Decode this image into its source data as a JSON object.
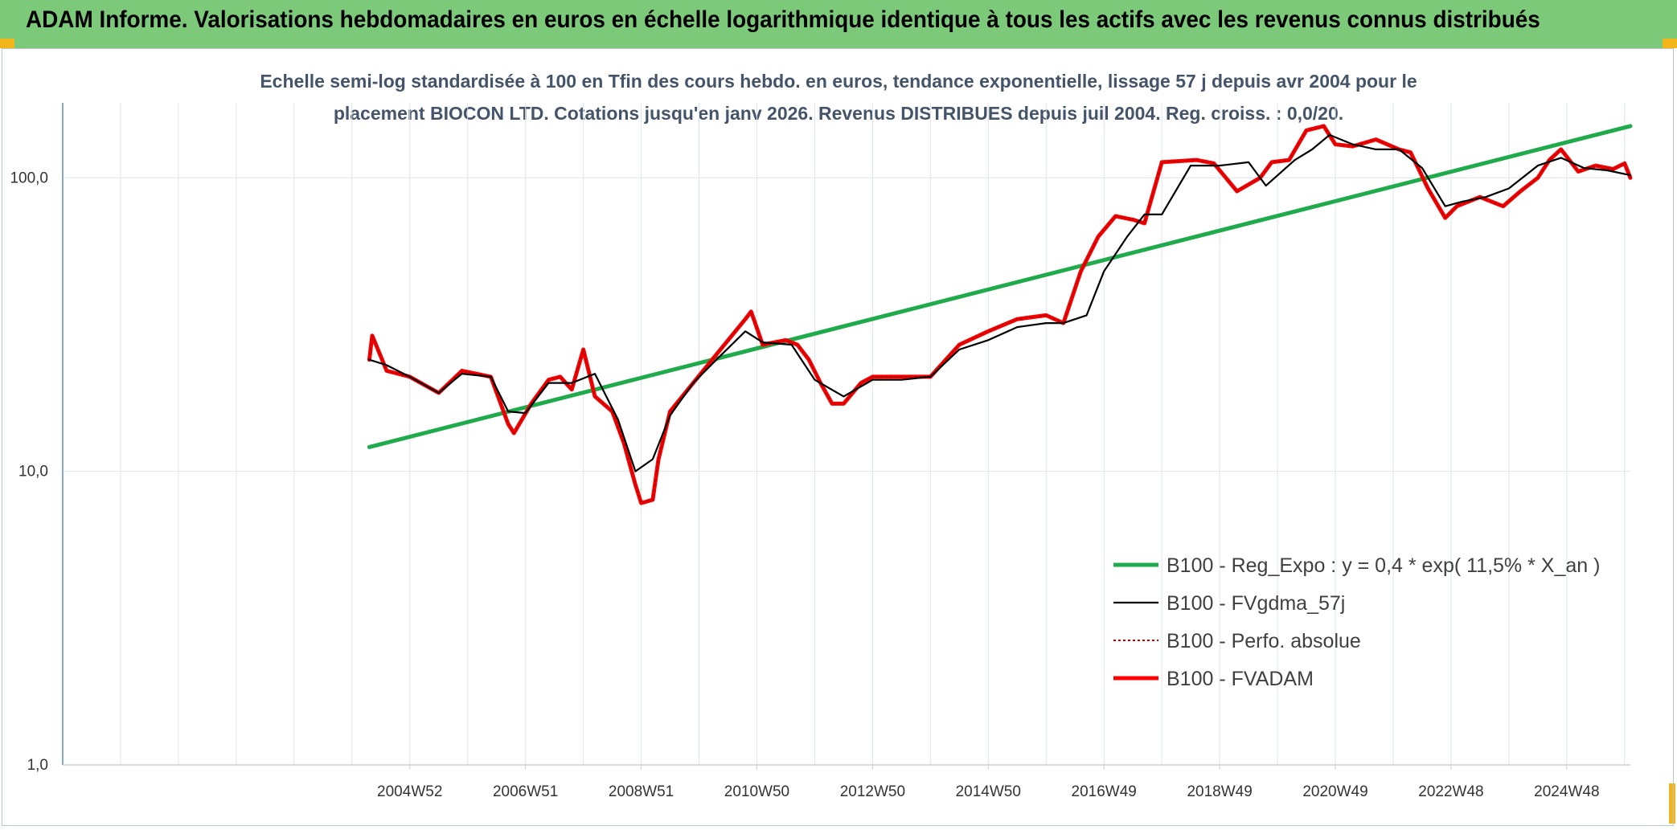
{
  "header": {
    "title": "ADAM Informe. Valorisations hebdomadaires en euros en échelle logarithmique identique à tous les actifs avec les revenus connus distribués"
  },
  "chart_data": {
    "type": "line",
    "scale": "log",
    "grid": true,
    "legend_position": "bottom-right",
    "title_line1": "Echelle semi-log standardisée à 100 en Tfin des cours hebdo. en euros, tendance exponentielle, lissage 57 j depuis avr 2004 pour le",
    "title_line2": "placement BIOCON LTD. Cotations jusqu'en janv 2026. Revenus DISTRIBUES depuis juil 2004. Reg. croiss. : 0,0/20.",
    "ylim": [
      1,
      180
    ],
    "y_ticks": [
      {
        "value": 1,
        "label": "1,0"
      },
      {
        "value": 10,
        "label": "10,0"
      },
      {
        "value": 100,
        "label": "100,0"
      }
    ],
    "xlim": [
      1999.0,
      2026.1
    ],
    "x_ticks": [
      {
        "value": 2005.0,
        "label": "2004W52"
      },
      {
        "value": 2007.0,
        "label": "2006W51"
      },
      {
        "value": 2009.0,
        "label": "2008W51"
      },
      {
        "value": 2011.0,
        "label": "2010W50"
      },
      {
        "value": 2013.0,
        "label": "2012W50"
      },
      {
        "value": 2015.0,
        "label": "2014W50"
      },
      {
        "value": 2017.0,
        "label": "2016W49"
      },
      {
        "value": 2019.0,
        "label": "2018W49"
      },
      {
        "value": 2021.0,
        "label": "2020W49"
      },
      {
        "value": 2023.0,
        "label": "2022W48"
      },
      {
        "value": 2025.0,
        "label": "2024W48"
      }
    ],
    "series": [
      {
        "name": "B100 - Reg_Expo : y = 0,4 * exp( 11,5% *  X_an )",
        "color": "#1faa4b",
        "style": "solid-thick",
        "x": [
          2004.3,
          2026.1
        ],
        "y": [
          12.1,
          150
        ]
      },
      {
        "name": "B100 - FVgdma_57j",
        "color": "#000000",
        "style": "solid-thin",
        "x": [
          2004.3,
          2004.6,
          2005.0,
          2005.5,
          2005.9,
          2006.4,
          2006.7,
          2007.0,
          2007.4,
          2007.8,
          2008.2,
          2008.6,
          2008.9,
          2009.2,
          2009.5,
          2009.9,
          2010.3,
          2010.8,
          2011.1,
          2011.6,
          2012.0,
          2012.5,
          2013.0,
          2013.5,
          2014.0,
          2014.5,
          2015.0,
          2015.5,
          2016.0,
          2016.3,
          2016.7,
          2017.0,
          2017.4,
          2017.7,
          2018.0,
          2018.5,
          2019.0,
          2019.5,
          2019.8,
          2020.3,
          2020.6,
          2020.9,
          2021.3,
          2021.7,
          2022.1,
          2022.5,
          2022.9,
          2023.2,
          2023.6,
          2024.0,
          2024.5,
          2024.9,
          2025.3,
          2025.7,
          2026.1
        ],
        "y": [
          24,
          23,
          21,
          18.5,
          21.5,
          21,
          16,
          15.8,
          20,
          20,
          21.5,
          15,
          10,
          11,
          15.5,
          20,
          24,
          30,
          27.5,
          27,
          20.5,
          18,
          20.5,
          20.5,
          21,
          26,
          28,
          31,
          32,
          32,
          34,
          48,
          63,
          75,
          75,
          110,
          110,
          113,
          94,
          115,
          125,
          140,
          130,
          125,
          125,
          108,
          80,
          83,
          86,
          92,
          110,
          117,
          108,
          106,
          102
        ]
      },
      {
        "name": "B100 - Perfo. absolue",
        "color": "#c00000",
        "style": "dotted",
        "x": [
          2004.3,
          2004.35,
          2004.6,
          2005.0,
          2005.5,
          2005.9,
          2006.4,
          2006.7,
          2006.8,
          2007.1,
          2007.4,
          2007.6,
          2007.8,
          2008.0,
          2008.2,
          2008.5,
          2008.7,
          2008.9,
          2009.0,
          2009.2,
          2009.3,
          2009.5,
          2009.9,
          2010.3,
          2010.8,
          2010.9,
          2011.1,
          2011.5,
          2011.7,
          2011.9,
          2012.1,
          2012.3,
          2012.5,
          2012.8,
          2013.0,
          2013.5,
          2014.0,
          2014.5,
          2015.0,
          2015.5,
          2016.0,
          2016.3,
          2016.6,
          2016.9,
          2017.2,
          2017.5,
          2017.7,
          2018.0,
          2018.3,
          2018.6,
          2018.9,
          2019.3,
          2019.7,
          2019.9,
          2020.2,
          2020.5,
          2020.8,
          2021.0,
          2021.3,
          2021.7,
          2022.1,
          2022.3,
          2022.6,
          2022.9,
          2023.1,
          2023.5,
          2023.9,
          2024.2,
          2024.5,
          2024.7,
          2024.9,
          2025.2,
          2025.5,
          2025.8,
          2026.0,
          2026.1
        ],
        "y": [
          24,
          29,
          22,
          21,
          18.5,
          22,
          21,
          14.5,
          13.5,
          17,
          20.5,
          21,
          19,
          26,
          18,
          16,
          12.5,
          9,
          7.8,
          8,
          11,
          16,
          20,
          25,
          33,
          35,
          27,
          28,
          27,
          24,
          20,
          17,
          17,
          20,
          21,
          21,
          21,
          27,
          30,
          33,
          34,
          32,
          48,
          63,
          74,
          72,
          70,
          113,
          114,
          115,
          112,
          90,
          100,
          113,
          115,
          145,
          150,
          130,
          128,
          135,
          125,
          122,
          92,
          73,
          80,
          86,
          80,
          90,
          100,
          115,
          125,
          105,
          110,
          107,
          112,
          100
        ]
      },
      {
        "name": "B100 - FVADAM",
        "color": "#ff0000",
        "style": "solid-thick",
        "x": [
          2004.3,
          2004.35,
          2004.6,
          2005.0,
          2005.5,
          2005.9,
          2006.4,
          2006.7,
          2006.8,
          2007.1,
          2007.4,
          2007.6,
          2007.8,
          2008.0,
          2008.2,
          2008.5,
          2008.7,
          2008.9,
          2009.0,
          2009.2,
          2009.3,
          2009.5,
          2009.9,
          2010.3,
          2010.8,
          2010.9,
          2011.1,
          2011.5,
          2011.7,
          2011.9,
          2012.1,
          2012.3,
          2012.5,
          2012.8,
          2013.0,
          2013.5,
          2014.0,
          2014.5,
          2015.0,
          2015.5,
          2016.0,
          2016.3,
          2016.6,
          2016.9,
          2017.2,
          2017.5,
          2017.7,
          2018.0,
          2018.3,
          2018.6,
          2018.9,
          2019.3,
          2019.7,
          2019.9,
          2020.2,
          2020.5,
          2020.8,
          2021.0,
          2021.3,
          2021.7,
          2022.1,
          2022.3,
          2022.6,
          2022.9,
          2023.1,
          2023.5,
          2023.9,
          2024.2,
          2024.5,
          2024.7,
          2024.9,
          2025.2,
          2025.5,
          2025.8,
          2026.0,
          2026.1
        ],
        "y": [
          24,
          29,
          22,
          21,
          18.5,
          22,
          21,
          14.5,
          13.5,
          17,
          20.5,
          21,
          19,
          26,
          18,
          16,
          12.5,
          9,
          7.8,
          8,
          11,
          16,
          20,
          25,
          33,
          35,
          27,
          28,
          27,
          24,
          20,
          17,
          17,
          20,
          21,
          21,
          21,
          27,
          30,
          33,
          34,
          32,
          48,
          63,
          74,
          72,
          70,
          113,
          114,
          115,
          112,
          90,
          100,
          113,
          115,
          145,
          150,
          130,
          128,
          135,
          125,
          122,
          92,
          73,
          80,
          86,
          80,
          90,
          100,
          115,
          125,
          105,
          110,
          107,
          112,
          100
        ]
      }
    ]
  }
}
